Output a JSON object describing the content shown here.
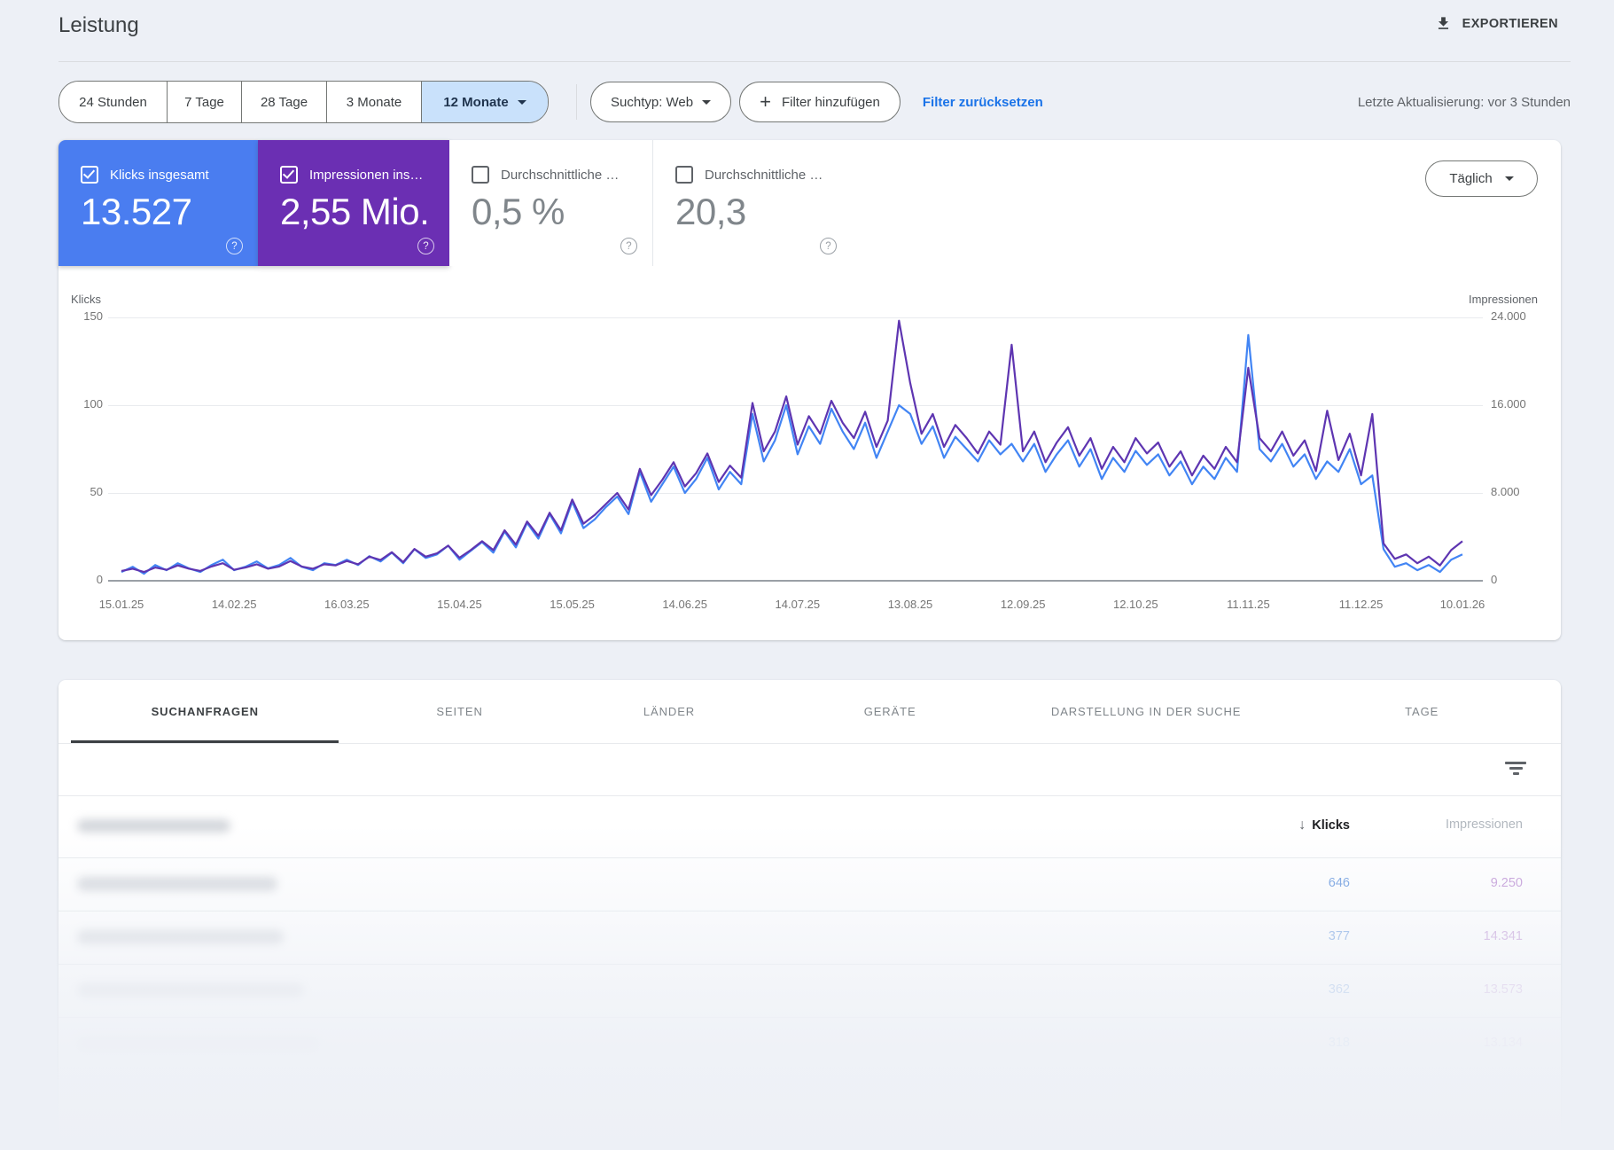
{
  "header": {
    "title": "Leistung",
    "export_label": "EXPORTIEREN"
  },
  "filters": {
    "ranges": [
      "24 Stunden",
      "7 Tage",
      "28 Tage",
      "3 Monate",
      "12 Monate"
    ],
    "selected_range": "12 Monate",
    "search_type": "Suchtyp: Web",
    "add_filter": "Filter hinzufügen",
    "reset": "Filter zurücksetzen",
    "last_update": "Letzte Aktualisierung: vor 3 Stunden"
  },
  "metrics": {
    "granularity": "Täglich",
    "cards": [
      {
        "label": "Klicks insgesamt",
        "value": "13.527",
        "checked": true,
        "color": "#4a7df0"
      },
      {
        "label": "Impressionen ins…",
        "value": "2,55 Mio.",
        "checked": true,
        "color": "#6b2fb3"
      },
      {
        "label": "Durchschnittliche …",
        "value": "0,5 %",
        "checked": false,
        "color": "#ffffff"
      },
      {
        "label": "Durchschnittliche …",
        "value": "20,3",
        "checked": false,
        "color": "#ffffff"
      }
    ]
  },
  "chart_data": {
    "type": "line",
    "x_labels": [
      "15.01.25",
      "14.02.25",
      "16.03.25",
      "15.04.25",
      "15.05.25",
      "14.06.25",
      "14.07.25",
      "13.08.25",
      "12.09.25",
      "12.10.25",
      "11.11.25",
      "11.12.25",
      "10.01.26"
    ],
    "label_indices": [
      0,
      10,
      20,
      30,
      40,
      50,
      60,
      70,
      80,
      90,
      100,
      110,
      119
    ],
    "grid": true,
    "left_axis": {
      "title": "Klicks",
      "max": 150,
      "tick_labels": [
        "150",
        "100",
        "50",
        "0"
      ],
      "tick_values": [
        150,
        100,
        50,
        0
      ]
    },
    "right_axis": {
      "title": "Impressionen",
      "max": 24000,
      "tick_labels": [
        "24.000",
        "16.000",
        "8.000",
        "0"
      ],
      "tick_values": [
        24000,
        16000,
        8000,
        0
      ]
    },
    "series": [
      {
        "name": "Klicks insgesamt",
        "axis": "left",
        "axis_max": 150,
        "color": "#4285f4",
        "values": [
          5,
          8,
          4,
          9,
          6,
          10,
          7,
          5,
          9,
          12,
          6,
          8,
          11,
          7,
          9,
          13,
          8,
          6,
          10,
          9,
          12,
          9,
          14,
          11,
          16,
          10,
          18,
          13,
          15,
          20,
          12,
          17,
          22,
          16,
          28,
          19,
          33,
          24,
          38,
          27,
          45,
          30,
          35,
          42,
          48,
          38,
          62,
          45,
          55,
          65,
          50,
          58,
          70,
          52,
          62,
          55,
          95,
          68,
          80,
          100,
          72,
          88,
          78,
          98,
          85,
          75,
          90,
          70,
          85,
          100,
          95,
          78,
          88,
          70,
          82,
          75,
          68,
          80,
          72,
          78,
          68,
          78,
          62,
          72,
          80,
          65,
          75,
          58,
          70,
          62,
          74,
          66,
          72,
          60,
          68,
          55,
          65,
          58,
          70,
          62,
          140,
          75,
          68,
          78,
          65,
          72,
          58,
          68,
          62,
          75,
          55,
          60,
          18,
          8,
          10,
          6,
          9,
          5,
          12,
          15
        ]
      },
      {
        "name": "Impressionen insgesamt",
        "axis": "right",
        "axis_max": 24000,
        "color": "#5e35b1",
        "values": [
          900,
          1100,
          800,
          1200,
          1000,
          1400,
          1100,
          900,
          1300,
          1600,
          1000,
          1200,
          1500,
          1100,
          1300,
          1800,
          1300,
          1100,
          1500,
          1400,
          1800,
          1500,
          2200,
          1900,
          2600,
          1700,
          2900,
          2200,
          2500,
          3200,
          2100,
          2800,
          3600,
          2800,
          4600,
          3300,
          5400,
          4100,
          6200,
          4600,
          7400,
          5200,
          6000,
          7000,
          8000,
          6500,
          10200,
          7800,
          9200,
          10800,
          8600,
          9800,
          11600,
          9000,
          10500,
          9400,
          16200,
          11800,
          13600,
          16800,
          12400,
          15000,
          13400,
          16400,
          14400,
          13000,
          15400,
          12200,
          14600,
          23700,
          18000,
          13400,
          15200,
          12200,
          14200,
          13000,
          11600,
          13600,
          12400,
          21500,
          11800,
          13600,
          10800,
          12600,
          14000,
          11400,
          13000,
          10200,
          12200,
          10800,
          13000,
          11600,
          12600,
          10400,
          11800,
          9600,
          11400,
          10200,
          12200,
          10800,
          19400,
          13000,
          11800,
          13600,
          11400,
          12800,
          10000,
          15500,
          11000,
          13400,
          9600,
          15200,
          3400,
          2000,
          2400,
          1600,
          2200,
          1400,
          2800,
          3600
        ]
      }
    ]
  },
  "tabs": [
    "SUCHANFRAGEN",
    "SEITEN",
    "LÄNDER",
    "GERÄTE",
    "DARSTELLUNG IN DER SUCHE",
    "TAGE"
  ],
  "active_tab": "SUCHANFRAGEN",
  "table": {
    "columns": {
      "clicks": "Klicks",
      "impressions": "Impressionen"
    },
    "rows": [
      {
        "clicks": "646",
        "impressions": "9.250"
      },
      {
        "clicks": "377",
        "impressions": "14.341"
      },
      {
        "clicks": "362",
        "impressions": "13.573"
      },
      {
        "clicks": "318",
        "impressions": "13.134"
      }
    ]
  }
}
